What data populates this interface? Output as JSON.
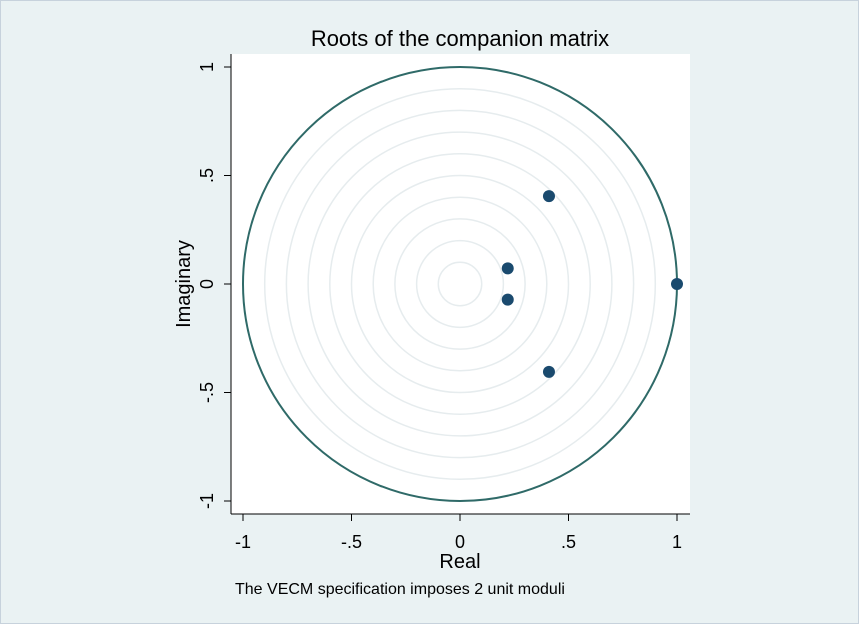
{
  "chart_data": {
    "type": "scatter",
    "title": "Roots of the companion matrix",
    "xlabel": "Real",
    "ylabel": "Imaginary",
    "note": "The VECM specification imposes 2 unit moduli",
    "xlim": [
      -1.05,
      1.05
    ],
    "ylim": [
      -1.05,
      1.05
    ],
    "xticks": [
      {
        "value": -1,
        "label": "-1"
      },
      {
        "value": -0.5,
        "label": "-.5"
      },
      {
        "value": 0,
        "label": "0"
      },
      {
        "value": 0.5,
        "label": ".5"
      },
      {
        "value": 1,
        "label": "1"
      }
    ],
    "yticks": [
      {
        "value": -1,
        "label": "-1"
      },
      {
        "value": -0.5,
        "label": "-.5"
      },
      {
        "value": 0,
        "label": "0"
      },
      {
        "value": 0.5,
        "label": ".5"
      },
      {
        "value": 1,
        "label": "1"
      }
    ],
    "unit_circle": true,
    "grid_circles": [
      0.1,
      0.2,
      0.3,
      0.4,
      0.5,
      0.6,
      0.7,
      0.8,
      0.9
    ],
    "points": [
      {
        "real": 1.0,
        "imag": 0.0
      },
      {
        "real": 0.41,
        "imag": 0.405
      },
      {
        "real": 0.41,
        "imag": -0.405
      },
      {
        "real": 0.22,
        "imag": 0.072
      },
      {
        "real": 0.22,
        "imag": -0.072
      }
    ],
    "colors": {
      "point": "#1a4a6e",
      "unit_circle": "#2f6a68",
      "grid_circle": "#e6ecee",
      "plot_bg": "#ffffff",
      "outer_bg": "#eaf2f3"
    }
  }
}
